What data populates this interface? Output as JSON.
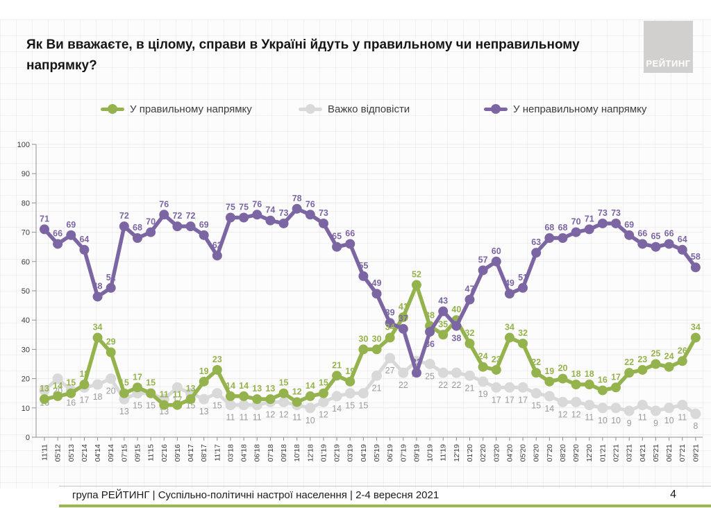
{
  "slide": {
    "title": "Як Ви вважаєте, в цілому, справи в Україні йдуть у правильному чи неправильному напрямку?",
    "logo_text": "РЕЙТИНГ",
    "footer": {
      "text": "група РЕЙТИНГ | Суспільно-політичні настрої населення  | 2-4 вересня 2021",
      "page": "4"
    }
  },
  "chart_data": {
    "type": "line",
    "title": "Як Ви вважаєте, в цілому, справи в Україні йдуть у правильному чи неправильному напрямку?",
    "categories": [
      "11'11",
      "05'12",
      "05'13",
      "02'14",
      "04'14",
      "09'14",
      "07'15",
      "09'15",
      "11'15",
      "02'16",
      "09'16",
      "04'17",
      "08'17",
      "11'17",
      "03'18",
      "04'18",
      "06'18",
      "07'18",
      "09'18",
      "10'18",
      "12'18",
      "01'19",
      "02'19",
      "03'19",
      "04'19",
      "05'19",
      "06'19",
      "07'19",
      "09'19",
      "10'19",
      "11'19",
      "12'19",
      "01'20",
      "02'20",
      "03'20",
      "04'20",
      "05'20",
      "06'20",
      "07'20",
      "08'20",
      "09'20",
      "12'20",
      "01'21",
      "02'21",
      "03'21",
      "04'21",
      "05'21",
      "06'21",
      "07'21",
      "09'21"
    ],
    "series": [
      {
        "name": "У правильному напрямку",
        "color": "#95b34d",
        "label_color": "#95b34d",
        "values": [
          13,
          14,
          15,
          18,
          34,
          29,
          15,
          17,
          15,
          11,
          11,
          13,
          19,
          23,
          14,
          14,
          13,
          13,
          15,
          12,
          14,
          15,
          21,
          19,
          30,
          30,
          34,
          41,
          52,
          38,
          35,
          40,
          32,
          24,
          23,
          34,
          32,
          22,
          19,
          20,
          18,
          18,
          16,
          17,
          22,
          23,
          25,
          24,
          26,
          34
        ]
      },
      {
        "name": "Важко відповісти",
        "color": "#d9d9d9",
        "label_color": "#9b9b9b",
        "values": [
          16,
          20,
          16,
          17,
          18,
          20,
          13,
          15,
          15,
          13,
          17,
          15,
          13,
          15,
          11,
          11,
          11,
          12,
          12,
          11,
          10,
          12,
          14,
          15,
          15,
          21,
          27,
          22,
          26,
          25,
          22,
          22,
          21,
          19,
          17,
          17,
          17,
          15,
          14,
          12,
          12,
          11,
          10,
          10,
          9,
          11,
          9,
          10,
          11,
          8
        ]
      },
      {
        "name": "У неправильному напрямку",
        "color": "#7b66a3",
        "label_color": "#7b66a3",
        "values": [
          71,
          66,
          69,
          64,
          48,
          51,
          72,
          68,
          70,
          76,
          72,
          72,
          69,
          62,
          75,
          75,
          76,
          74,
          73,
          78,
          76,
          73,
          65,
          66,
          55,
          49,
          39,
          37,
          22,
          36,
          43,
          38,
          47,
          57,
          60,
          49,
          51,
          63,
          68,
          68,
          70,
          71,
          73,
          73,
          69,
          66,
          65,
          66,
          64,
          58
        ]
      }
    ],
    "ylim": [
      0,
      100
    ],
    "yticks": [
      0,
      10,
      20,
      30,
      40,
      50,
      60,
      70,
      80,
      90,
      100
    ],
    "grid": "horizontal",
    "legend_position": "top"
  }
}
